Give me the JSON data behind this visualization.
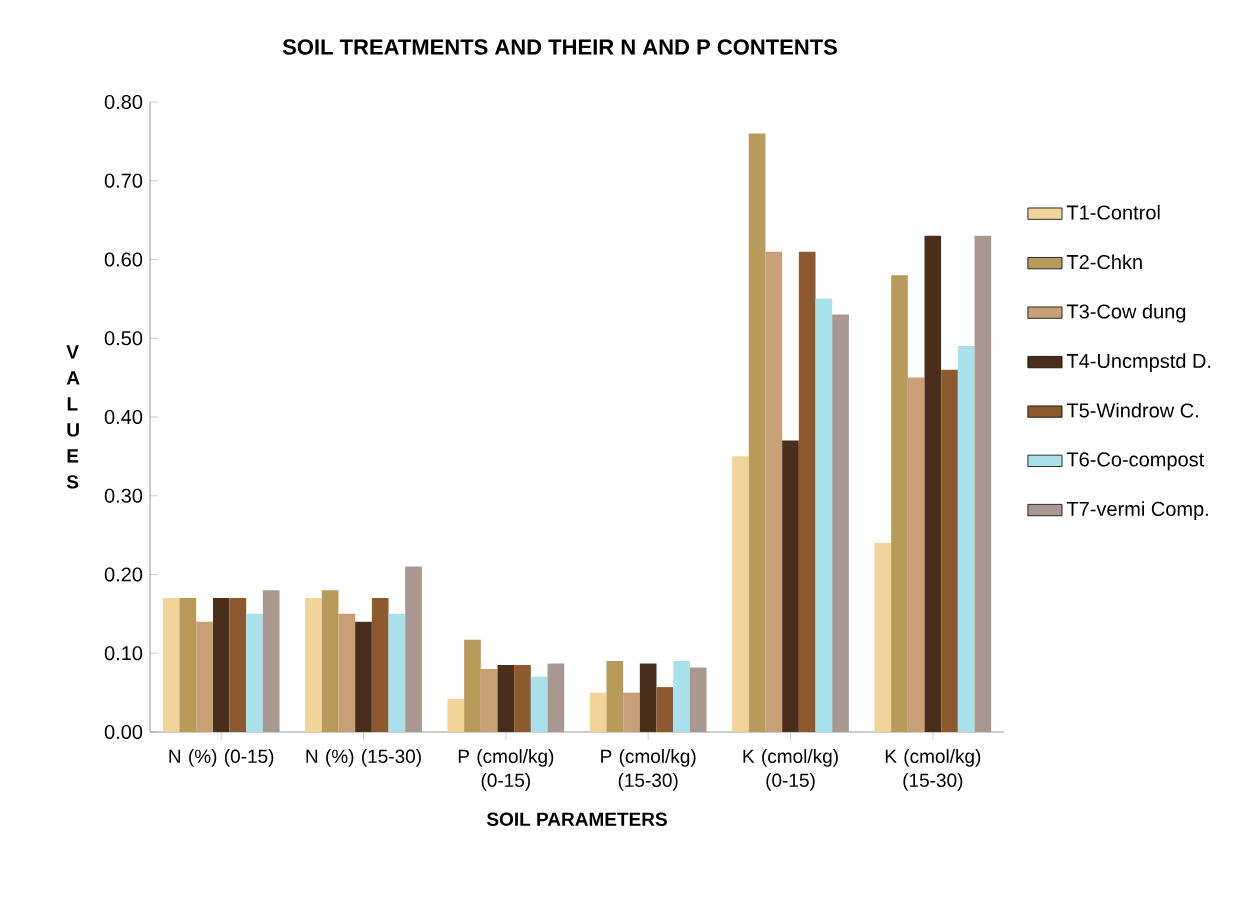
{
  "chart_data": {
    "type": "bar",
    "title": "SOIL TREATMENTS AND THEIR N AND P CONTENTS",
    "xlabel": "SOIL PARAMETERS",
    "ylabel": "V A L U E S",
    "categories": [
      "N (%) (0-15)",
      "N (%) (15-30)",
      "P (cmol/kg) (0-15)",
      "P (cmol/kg) (15-30)",
      "K (cmol/kg) (0-15)",
      "K (cmol/kg) (15-30)"
    ],
    "series": [
      {
        "name": "T1-Control",
        "color": "#f0d49a",
        "values": [
          0.17,
          0.17,
          0.042,
          0.05,
          0.35,
          0.24
        ]
      },
      {
        "name": "T2-Chkn",
        "color": "#b89a5a",
        "values": [
          0.17,
          0.18,
          0.117,
          0.09,
          0.76,
          0.58
        ]
      },
      {
        "name": "T3-Cow dung",
        "color": "#c8a078",
        "values": [
          0.14,
          0.15,
          0.08,
          0.05,
          0.61,
          0.45
        ]
      },
      {
        "name": "T4-Uncmpstd D.",
        "color": "#4a2e1c",
        "values": [
          0.17,
          0.14,
          0.085,
          0.087,
          0.37,
          0.63
        ]
      },
      {
        "name": "T5-Windrow C.",
        "color": "#8c5a2e",
        "values": [
          0.17,
          0.17,
          0.085,
          0.057,
          0.61,
          0.46
        ]
      },
      {
        "name": "T6-Co-compost",
        "color": "#a8e0ec",
        "values": [
          0.15,
          0.15,
          0.07,
          0.09,
          0.55,
          0.49
        ]
      },
      {
        "name": "T7-vermi Comp.",
        "color": "#a89890",
        "values": [
          0.18,
          0.21,
          0.087,
          0.082,
          0.53,
          0.63
        ]
      }
    ],
    "ylim": [
      0,
      0.8
    ],
    "yticks": [
      {
        "value": 0,
        "label": "0.00"
      },
      {
        "value": 0.1,
        "label": "0.10"
      },
      {
        "value": 0.2,
        "label": "0.20"
      },
      {
        "value": 0.3,
        "label": "0.30"
      },
      {
        "value": 0.4,
        "label": "0.40"
      },
      {
        "value": 0.5,
        "label": "0.50"
      },
      {
        "value": 0.6,
        "label": "0.60"
      },
      {
        "value": 0.7,
        "label": "0.70"
      },
      {
        "value": 0.8,
        "label": "0.80"
      }
    ],
    "legend": "right",
    "grid": false
  }
}
